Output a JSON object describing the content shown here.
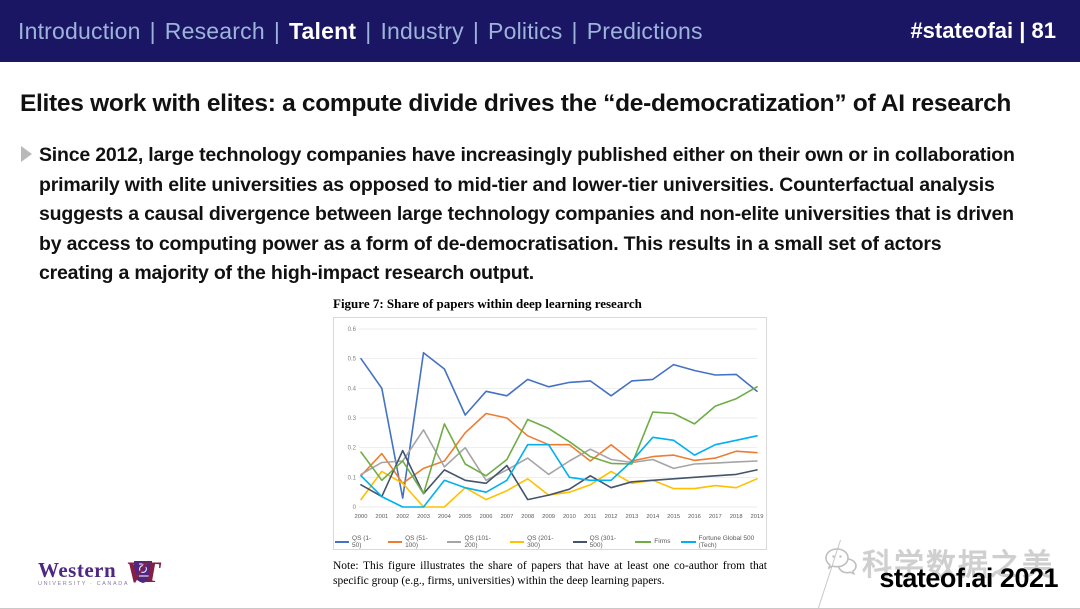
{
  "topbar": {
    "separator": "|",
    "nav": [
      {
        "label": "Introduction",
        "active": false
      },
      {
        "label": "Research",
        "active": false
      },
      {
        "label": "Talent",
        "active": true
      },
      {
        "label": "Industry",
        "active": false
      },
      {
        "label": "Politics",
        "active": false
      },
      {
        "label": "Predictions",
        "active": false
      }
    ],
    "right": "#stateofai | 81"
  },
  "slide": {
    "title": "Elites work with elites: a compute divide drives the “de-democratization” of AI research",
    "body": "Since 2012, large technology companies have increasingly published either on their own or in collaboration primarily with elite universities as opposed to mid-tier and lower-tier universities. Counterfactual analysis suggests a causal divergence between large technology companies and non-elite universities that is driven by access to computing power as a form of de-democratisation. This results in a small set of actors creating a majority of the high-impact research output."
  },
  "figure": {
    "title": "Figure 7: Share of papers within deep learning research",
    "note": "Note: This figure illustrates the share of papers that have at least one co-author from that specific group (e.g., firms, universities) within the deep learning papers."
  },
  "chart_data": {
    "type": "line",
    "title": "Figure 7: Share of papers within deep learning research",
    "x": [
      2000,
      2001,
      2002,
      2003,
      2004,
      2005,
      2006,
      2007,
      2008,
      2009,
      2010,
      2011,
      2012,
      2013,
      2014,
      2015,
      2016,
      2017,
      2018,
      2019
    ],
    "ylim": [
      0,
      0.6
    ],
    "yticks": [
      0,
      0.1,
      0.2,
      0.3,
      0.4,
      0.5,
      0.6
    ],
    "grid": true,
    "legend_position": "bottom",
    "series": [
      {
        "name": "QS (1-50)",
        "color": "#4472c4",
        "values": [
          0.5,
          0.4,
          0.03,
          0.52,
          0.465,
          0.31,
          0.39,
          0.375,
          0.43,
          0.405,
          0.42,
          0.425,
          0.375,
          0.425,
          0.43,
          0.48,
          0.46,
          0.445,
          0.447,
          0.39
        ]
      },
      {
        "name": "QS (51-100)",
        "color": "#ed7d31",
        "values": [
          0.105,
          0.18,
          0.08,
          0.13,
          0.155,
          0.25,
          0.315,
          0.3,
          0.24,
          0.21,
          0.21,
          0.155,
          0.21,
          0.155,
          0.17,
          0.175,
          0.157,
          0.165,
          0.188,
          0.183
        ]
      },
      {
        "name": "QS (101-200)",
        "color": "#a5a5a5",
        "values": [
          0.11,
          0.15,
          0.155,
          0.26,
          0.135,
          0.2,
          0.09,
          0.125,
          0.165,
          0.11,
          0.155,
          0.195,
          0.16,
          0.15,
          0.16,
          0.13,
          0.145,
          0.148,
          0.152,
          0.155
        ]
      },
      {
        "name": "QS (201-300)",
        "color": "#ffc000",
        "values": [
          0.025,
          0.12,
          0.08,
          0.0,
          0.0,
          0.065,
          0.025,
          0.055,
          0.095,
          0.04,
          0.05,
          0.075,
          0.12,
          0.08,
          0.09,
          0.062,
          0.062,
          0.072,
          0.065,
          0.095
        ]
      },
      {
        "name": "QS (301-500)",
        "color": "#44546a",
        "values": [
          0.075,
          0.035,
          0.19,
          0.045,
          0.125,
          0.09,
          0.08,
          0.14,
          0.025,
          0.04,
          0.06,
          0.105,
          0.065,
          0.085,
          0.09,
          0.095,
          0.1,
          0.105,
          0.11,
          0.125
        ]
      },
      {
        "name": "Firms",
        "color": "#70ad47",
        "values": [
          0.185,
          0.09,
          0.155,
          0.045,
          0.28,
          0.145,
          0.105,
          0.16,
          0.295,
          0.265,
          0.22,
          0.17,
          0.147,
          0.145,
          0.32,
          0.315,
          0.28,
          0.34,
          0.365,
          0.405
        ]
      },
      {
        "name": "Fortune Global 500 (Tech)",
        "color": "#00b0f0",
        "values": [
          0.105,
          0.035,
          0.0,
          0.0,
          0.09,
          0.065,
          0.05,
          0.09,
          0.21,
          0.21,
          0.1,
          0.09,
          0.09,
          0.155,
          0.235,
          0.225,
          0.175,
          0.21,
          0.225,
          0.24
        ]
      }
    ]
  },
  "footer": {
    "western": {
      "name": "Western",
      "sub": "UNIVERSITY · CANADA",
      "color": "#4f2683"
    },
    "vt": {
      "text": "VT",
      "color": "#861f41"
    },
    "watermark": {
      "text": "科学数据之美",
      "icon": "wechat-icon"
    },
    "brand": "stateof.ai 2021"
  }
}
